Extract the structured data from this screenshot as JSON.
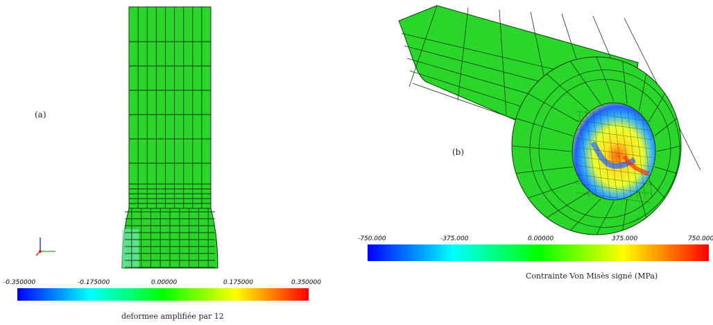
{
  "panel_a": {
    "label": "(a)",
    "colorbar": {
      "ticks": [
        "-0.350000",
        "-0.175000",
        "0.00000",
        "0.175000",
        "0.350000"
      ],
      "caption": "deformee amplifiée par 12",
      "colors": [
        "#0000ff",
        "#00ffff",
        "#00ff00",
        "#ffff00",
        "#ff0000"
      ]
    },
    "mesh_color": "#2bd62b",
    "mesh_line_color": "#0a3a0a"
  },
  "panel_b": {
    "label": "(b)",
    "colorbar": {
      "ticks": [
        "-750.000",
        "-375.000",
        "0.00000",
        "375.000",
        "750.000"
      ],
      "caption": "Contrainte Von Misès signé (MPa)",
      "colors": [
        "#0000ff",
        "#00ffff",
        "#00ff00",
        "#ffff00",
        "#ff0000"
      ]
    },
    "mesh_color": "#2bd62b",
    "mesh_line_color": "#0a3a0a"
  }
}
